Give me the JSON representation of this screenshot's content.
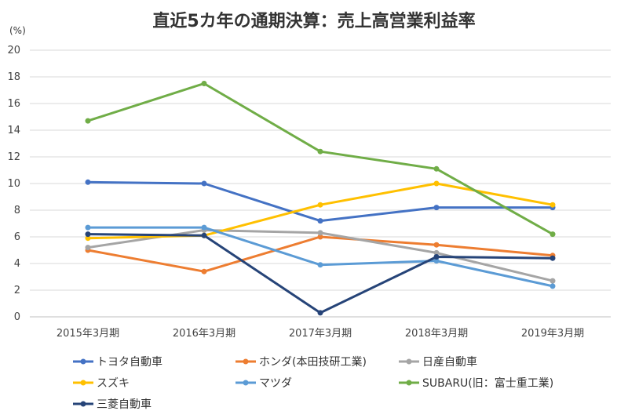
{
  "chart_data": {
    "type": "line",
    "title": "直近5カ年の通期決算：売上高営業利益率",
    "yunit": "(%)",
    "categories": [
      "2015年3月期",
      "2016年3月期",
      "2017年3月期",
      "2018年3月期",
      "2019年3月期"
    ],
    "ylim": [
      0,
      20
    ],
    "yticks": [
      0,
      2,
      4,
      6,
      8,
      10,
      12,
      14,
      16,
      18,
      20
    ],
    "grid": true,
    "legend_position": "bottom",
    "series": [
      {
        "name": "トヨタ自動車",
        "color": "#4472c4",
        "values": [
          10.1,
          10.0,
          7.2,
          8.2,
          8.2
        ]
      },
      {
        "name": "ホンダ(本田技研工業)",
        "color": "#ed7d31",
        "values": [
          5.0,
          3.4,
          6.0,
          5.4,
          4.6
        ]
      },
      {
        "name": "日産自動車",
        "color": "#a5a5a5",
        "values": [
          5.2,
          6.5,
          6.3,
          4.8,
          2.7
        ]
      },
      {
        "name": "スズキ",
        "color": "#ffc000",
        "values": [
          5.9,
          6.1,
          8.4,
          10.0,
          8.4
        ]
      },
      {
        "name": "マツダ",
        "color": "#5b9bd5",
        "values": [
          6.7,
          6.7,
          3.9,
          4.2,
          2.3
        ]
      },
      {
        "name": "SUBARU(旧：富士重工業)",
        "color": "#70ad47",
        "values": [
          14.7,
          17.5,
          12.4,
          11.1,
          6.2
        ]
      },
      {
        "name": "三菱自動車",
        "color": "#264478",
        "values": [
          6.2,
          6.1,
          0.3,
          4.5,
          4.4
        ]
      }
    ]
  }
}
